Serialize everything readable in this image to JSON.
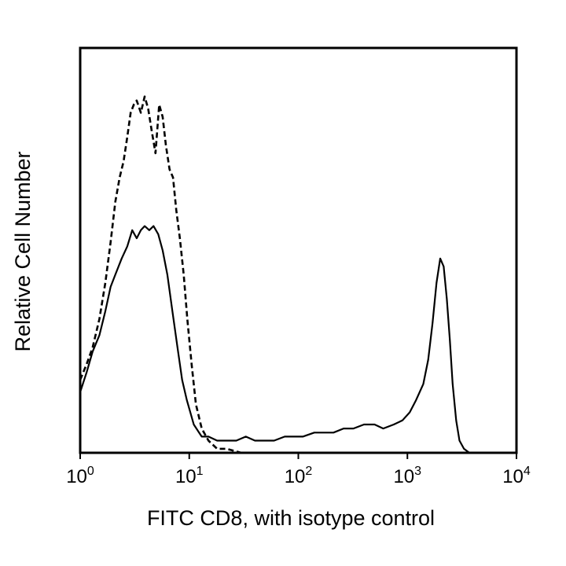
{
  "chart_data": {
    "type": "line",
    "title": "",
    "xlabel": "FITC CD8, with isotype control",
    "ylabel": "Relative Cell Number",
    "x_scale": "log",
    "xlim": [
      1,
      10000
    ],
    "ylim": [
      0,
      100
    ],
    "grid": false,
    "legend": "none",
    "x_ticks": [
      {
        "base": "10",
        "exp": "0"
      },
      {
        "base": "10",
        "exp": "1"
      },
      {
        "base": "10",
        "exp": "2"
      },
      {
        "base": "10",
        "exp": "3"
      },
      {
        "base": "10",
        "exp": "4"
      }
    ],
    "series": [
      {
        "style": "solid",
        "color": "#000000",
        "x": [
          1,
          1.15,
          1.3,
          1.5,
          1.7,
          1.9,
          2.1,
          2.4,
          2.7,
          3.0,
          3.3,
          3.6,
          3.9,
          4.3,
          4.7,
          5.2,
          5.7,
          6.3,
          7.0,
          7.8,
          8.6,
          9.5,
          11,
          13,
          15,
          18,
          22,
          27,
          33,
          40,
          50,
          60,
          75,
          90,
          110,
          140,
          170,
          210,
          260,
          320,
          400,
          500,
          600,
          750,
          900,
          1050,
          1200,
          1400,
          1550,
          1700,
          1850,
          2000,
          2150,
          2300,
          2450,
          2600,
          2800,
          3000,
          3300,
          3700,
          4500,
          6000,
          8000,
          10000
        ],
        "y": [
          15,
          20,
          25,
          29,
          35,
          41,
          44,
          48,
          51,
          55,
          53,
          55,
          56,
          55,
          56,
          54,
          50,
          44,
          35,
          26,
          18,
          13,
          7,
          4,
          4,
          3,
          3,
          3,
          4,
          3,
          3,
          3,
          4,
          4,
          4,
          5,
          5,
          5,
          6,
          6,
          7,
          7,
          6,
          7,
          8,
          10,
          13,
          17,
          23,
          32,
          42,
          48,
          46,
          38,
          28,
          17,
          8,
          3,
          1,
          0,
          0,
          0,
          0,
          0
        ]
      },
      {
        "style": "dashed",
        "color": "#000000",
        "x": [
          1,
          1.15,
          1.3,
          1.5,
          1.7,
          1.9,
          2.1,
          2.3,
          2.5,
          2.7,
          2.9,
          3.1,
          3.3,
          3.6,
          3.9,
          4.2,
          4.5,
          4.9,
          5.3,
          5.7,
          6.1,
          6.6,
          7.1,
          7.6,
          8.2,
          8.9,
          9.6,
          10.5,
          11.5,
          13,
          15,
          18,
          22,
          30,
          50,
          100,
          300,
          1000,
          3000,
          10000
        ],
        "y": [
          18,
          22,
          26,
          33,
          42,
          52,
          62,
          68,
          72,
          78,
          84,
          86,
          87,
          84,
          88,
          85,
          80,
          74,
          86,
          83,
          76,
          70,
          68,
          60,
          53,
          44,
          33,
          22,
          12,
          6,
          3,
          1,
          1,
          0,
          0,
          0,
          0,
          0,
          0,
          0
        ]
      }
    ]
  }
}
